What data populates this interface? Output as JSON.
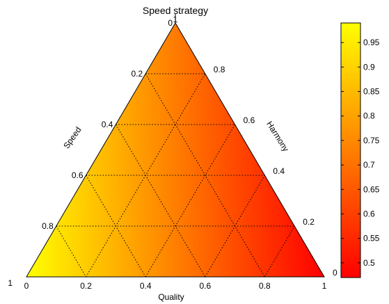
{
  "chart_data": {
    "type": "ternary-heatmap",
    "title": "Speed strategy",
    "axes": {
      "bottom": {
        "label": "Quality",
        "ticks": [
          "0",
          "0.2",
          "0.4",
          "0.6",
          "0.8",
          "1"
        ]
      },
      "left": {
        "label": "Speed",
        "ticks": [
          "0",
          "0.2",
          "0.4",
          "0.6",
          "0.8",
          "1"
        ]
      },
      "right": {
        "label": "Harmony",
        "ticks": [
          "0",
          "0.2",
          "0.4",
          "0.6",
          "0.8",
          "1"
        ]
      }
    },
    "grid": true,
    "grid_step": 0.2,
    "colorbar": {
      "colormap": "autumn",
      "min": 0.47,
      "max": 0.99,
      "ticks": [
        "0.5",
        "0.55",
        "0.6",
        "0.65",
        "0.7",
        "0.75",
        "0.8",
        "0.85",
        "0.9",
        "0.95"
      ],
      "tick_values": [
        0.5,
        0.55,
        0.6,
        0.65,
        0.7,
        0.75,
        0.8,
        0.85,
        0.9,
        0.95
      ]
    },
    "corner_values": {
      "speed": 0.99,
      "quality": 0.72,
      "harmony": 0.47
    },
    "colors": {
      "low": "#ff0000",
      "high": "#ffff00",
      "grid": "#000000"
    }
  }
}
